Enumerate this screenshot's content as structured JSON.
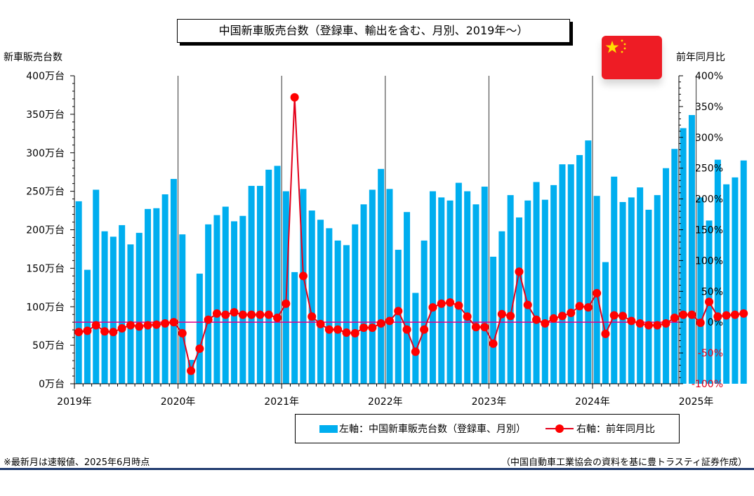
{
  "title": "中国新車販売台数（登録車、輸出を含む、月別、2019年～）",
  "left_axis_title": "新車販売台数",
  "right_axis_title": "前年同月比",
  "legend": {
    "bar_label": "左軸：中国新車販売台数（登録車、月別）",
    "line_label": "右軸：前年同月比"
  },
  "footnote": "※最新月は速報値、2025年6月時点",
  "source": "（中国自動車工業協会の資料を基に豊トラスティ証券作成）",
  "colors": {
    "bar": "#00AEEF",
    "line": "#E3001B",
    "marker": "#FF0000",
    "zero_line": "#E0008A",
    "flag_red": "#EE1C25",
    "flag_star": "#FFDE00"
  },
  "flag_icon": "china-flag-icon",
  "chart_data": {
    "type": "bar+line",
    "x_start": "2019-01",
    "x_end": "2025-12",
    "year_labels": [
      "2019年",
      "2020年",
      "2021年",
      "2022年",
      "2023年",
      "2024年",
      "2025年"
    ],
    "left_axis": {
      "ylim": [
        0,
        400
      ],
      "ticks": [
        "0万台",
        "50万台",
        "100万台",
        "150万台",
        "200万台",
        "250万台",
        "300万台",
        "350万台",
        "400万台"
      ]
    },
    "right_axis": {
      "ylim": [
        -100,
        400
      ],
      "ticks": [
        "-100%",
        "-50%",
        "0%",
        "50%",
        "100%",
        "150%",
        "200%",
        "250%",
        "300%",
        "350%",
        "400%"
      ]
    },
    "series": [
      {
        "name": "中国新車販売台数（登録車、月別）",
        "axis": "left",
        "kind": "bar",
        "unit": "万台",
        "values": [
          237,
          148,
          252,
          198,
          191,
          206,
          181,
          196,
          227,
          228,
          246,
          266,
          194,
          31,
          143,
          207,
          219,
          230,
          211,
          218,
          257,
          257,
          278,
          283,
          250,
          145,
          253,
          225,
          213,
          202,
          186,
          180,
          207,
          233,
          252,
          279,
          253,
          174,
          223,
          118,
          186,
          250,
          242,
          238,
          261,
          250,
          233,
          256,
          165,
          198,
          245,
          216,
          238,
          262,
          239,
          258,
          285,
          285,
          297,
          316,
          244,
          158,
          269,
          236,
          242,
          255,
          226,
          245,
          280,
          305,
          332,
          349,
          242,
          212,
          291,
          259,
          268,
          290
        ]
      },
      {
        "name": "前年同月比",
        "axis": "right",
        "kind": "line",
        "unit": "%",
        "values": [
          -16,
          -14,
          -5,
          -15,
          -16,
          -10,
          -5,
          -7,
          -5,
          -4,
          -2,
          0,
          -18,
          -79,
          -43,
          4,
          14,
          12,
          16,
          12,
          12,
          12,
          12,
          7,
          30,
          365,
          75,
          9,
          -3,
          -12,
          -12,
          -17,
          -18,
          -9,
          -9,
          -2,
          2,
          18,
          -12,
          -48,
          -12,
          24,
          30,
          32,
          27,
          9,
          -8,
          -8,
          -35,
          13,
          10,
          82,
          28,
          4,
          -2,
          6,
          10,
          15,
          26,
          24,
          47,
          -19,
          11,
          10,
          2,
          -2,
          -5,
          -5,
          -2,
          7,
          12,
          12,
          -1,
          33,
          9,
          11,
          12,
          14
        ]
      }
    ]
  }
}
